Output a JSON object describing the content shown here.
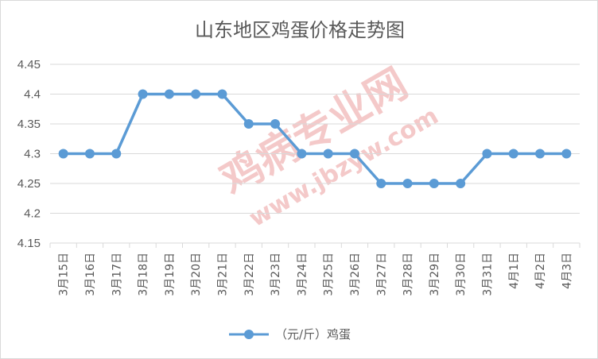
{
  "watermark": {
    "text_cn": "鸡病专业网",
    "text_url": "www.jbzyw.com"
  },
  "colors": {
    "series": "#5b9bd5",
    "grid": "#d9d9d9",
    "axis_text": "#595959",
    "watermark": "#f4c9c9"
  },
  "chart_data": {
    "type": "line",
    "title": "山东地区鸡蛋价格走势图",
    "xlabel": "",
    "ylabel": "",
    "ylim": [
      4.15,
      4.45
    ],
    "yticks": [
      "4.15",
      "4.2",
      "4.25",
      "4.3",
      "4.35",
      "4.4",
      "4.45"
    ],
    "ytick_values": [
      4.15,
      4.2,
      4.25,
      4.3,
      4.35,
      4.4,
      4.45
    ],
    "grid": true,
    "legend_position": "bottom",
    "categories": [
      "3月15日",
      "3月16日",
      "3月17日",
      "3月18日",
      "3月19日",
      "3月20日",
      "3月21日",
      "3月22日",
      "3月23日",
      "3月24日",
      "3月25日",
      "3月26日",
      "3月27日",
      "3月28日",
      "3月29日",
      "3月30日",
      "3月31日",
      "4月1日",
      "4月2日",
      "4月3日"
    ],
    "series": [
      {
        "name": "（元/斤）鸡蛋",
        "values": [
          4.3,
          4.3,
          4.3,
          4.4,
          4.4,
          4.4,
          4.4,
          4.35,
          4.35,
          4.3,
          4.3,
          4.3,
          4.25,
          4.25,
          4.25,
          4.25,
          4.3,
          4.3,
          4.3,
          4.3
        ]
      }
    ]
  }
}
